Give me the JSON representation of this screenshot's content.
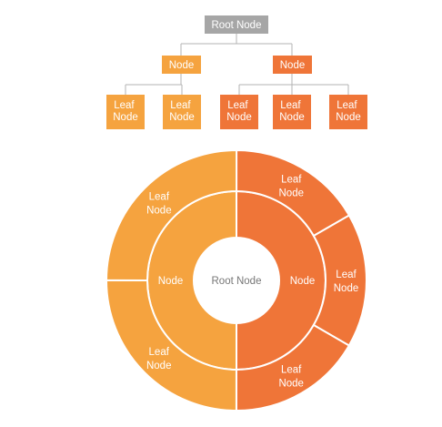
{
  "colors": {
    "root": "#a6a6a6",
    "left_branch": "#f5a33f",
    "right_branch": "#ef7538",
    "connector": "#b3b3b3",
    "root_text_center": "#777777",
    "label_text": "#ffffff",
    "background": "#ffffff"
  },
  "tree": {
    "root": {
      "label": "Root Node"
    },
    "branches": [
      {
        "label": "Node",
        "color_key": "left_branch",
        "children": [
          {
            "line1": "Leaf",
            "line2": "Node"
          },
          {
            "line1": "Leaf",
            "line2": "Node"
          }
        ]
      },
      {
        "label": "Node",
        "color_key": "right_branch",
        "children": [
          {
            "line1": "Leaf",
            "line2": "Node"
          },
          {
            "line1": "Leaf",
            "line2": "Node"
          },
          {
            "line1": "Leaf",
            "line2": "Node"
          }
        ]
      }
    ]
  },
  "sunburst": {
    "center_label": "Root Node",
    "inner": [
      {
        "label": "Node",
        "color_key": "left_branch",
        "share": 0.5
      },
      {
        "label": "Node",
        "color_key": "right_branch",
        "share": 0.5
      }
    ],
    "outer": [
      {
        "line1": "Leaf",
        "line2": "Node",
        "color_key": "right_branch",
        "share": 0.1667
      },
      {
        "line1": "Leaf",
        "line2": "Node",
        "color_key": "right_branch",
        "share": 0.1667
      },
      {
        "line1": "Leaf",
        "line2": "Node",
        "color_key": "right_branch",
        "share": 0.1667
      },
      {
        "line1": "Leaf",
        "line2": "Node",
        "color_key": "left_branch",
        "share": 0.25
      },
      {
        "line1": "Leaf",
        "line2": "Node",
        "color_key": "left_branch",
        "share": 0.25
      }
    ]
  }
}
